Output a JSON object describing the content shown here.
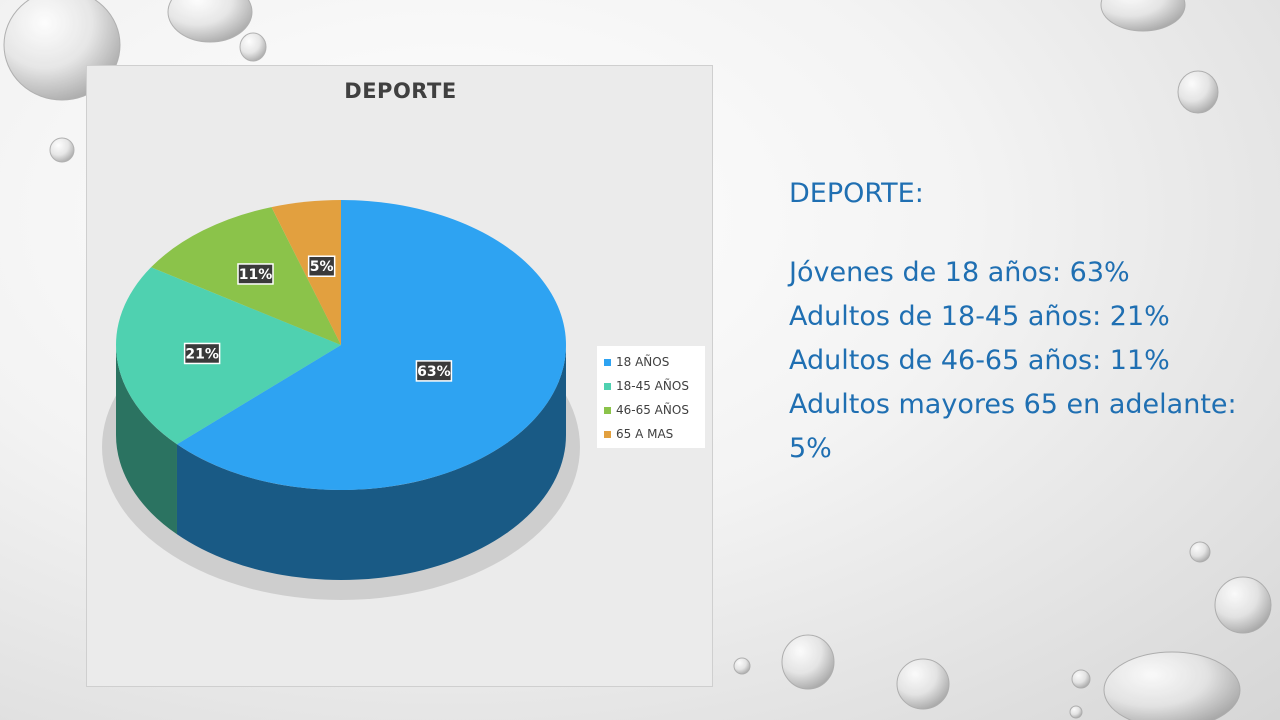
{
  "slide": {
    "heading": "DEPORTE:",
    "lines": [
      "Jóvenes de 18 años: 63%",
      "Adultos de 18-45 años: 21%",
      "Adultos de 46-65 años: 11%",
      "Adultos mayores 65 en adelante: 5%"
    ]
  },
  "chart_data": {
    "type": "pie",
    "title": "DEPORTE",
    "categories": [
      "18 AÑOS",
      "18-45 AÑOS",
      "46-65 AÑOS",
      "65 A MAS"
    ],
    "values": [
      63,
      21,
      11,
      5
    ],
    "data_labels": [
      "63%",
      "21%",
      "11%",
      "5%"
    ],
    "colors": [
      "#2ea3f2",
      "#4fd1b0",
      "#8bc34a",
      "#e2a03f"
    ],
    "style": "3d",
    "legend_position": "right"
  }
}
